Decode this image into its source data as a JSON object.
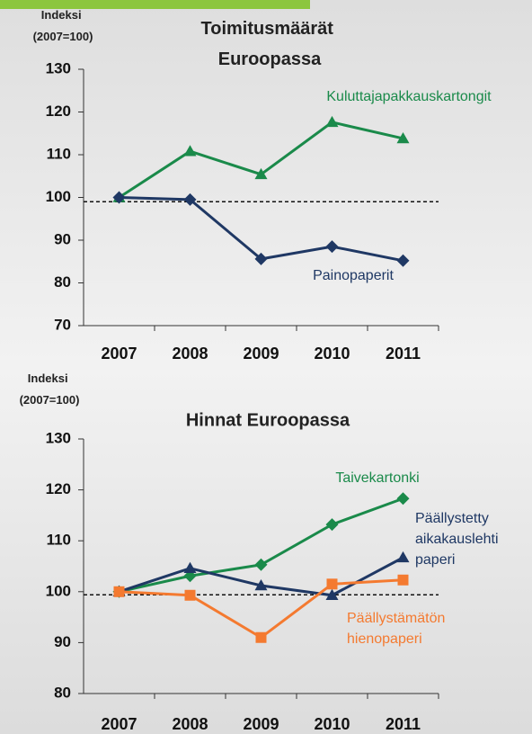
{
  "chart_data": [
    {
      "type": "line",
      "title": "Toimitusmäärät Euroopassa",
      "y_label": "Indeksi (2007=100)",
      "categories": [
        "2007",
        "2008",
        "2009",
        "2010",
        "2011"
      ],
      "ylim": [
        70,
        130
      ],
      "yticks": [
        70,
        80,
        90,
        100,
        110,
        120,
        130
      ],
      "reference_line": 99,
      "series": [
        {
          "name": "Kuluttajapakkauskartongit",
          "color": "#1a8a4a",
          "marker": "triangle",
          "values": [
            100,
            110.8,
            105.4,
            117.6,
            113.8
          ]
        },
        {
          "name": "Painopaperit",
          "color": "#1f3864",
          "marker": "diamond",
          "values": [
            100,
            99.5,
            85.6,
            88.5,
            85.2
          ]
        }
      ]
    },
    {
      "type": "line",
      "title": "Hinnat Euroopassa",
      "y_label": "Indeksi (2007=100)",
      "categories": [
        "2007",
        "2008",
        "2009",
        "2010",
        "2011"
      ],
      "ylim": [
        80,
        130
      ],
      "yticks": [
        80,
        90,
        100,
        110,
        120,
        130
      ],
      "reference_line": 99.4,
      "series": [
        {
          "name": "Taivekartonki",
          "color": "#1a8a4a",
          "marker": "diamond",
          "values": [
            100,
            103.1,
            105.3,
            113.2,
            118.3
          ]
        },
        {
          "name": "Päällystetty aikakauslehti paperi",
          "color": "#1f3864",
          "marker": "triangle",
          "values": [
            100,
            104.6,
            101.2,
            99.3,
            106.7
          ]
        },
        {
          "name": "Päällystämätön hienopaperi",
          "color": "#f47a30",
          "marker": "square",
          "values": [
            100,
            99.3,
            91,
            101.5,
            102.3
          ]
        }
      ]
    }
  ]
}
